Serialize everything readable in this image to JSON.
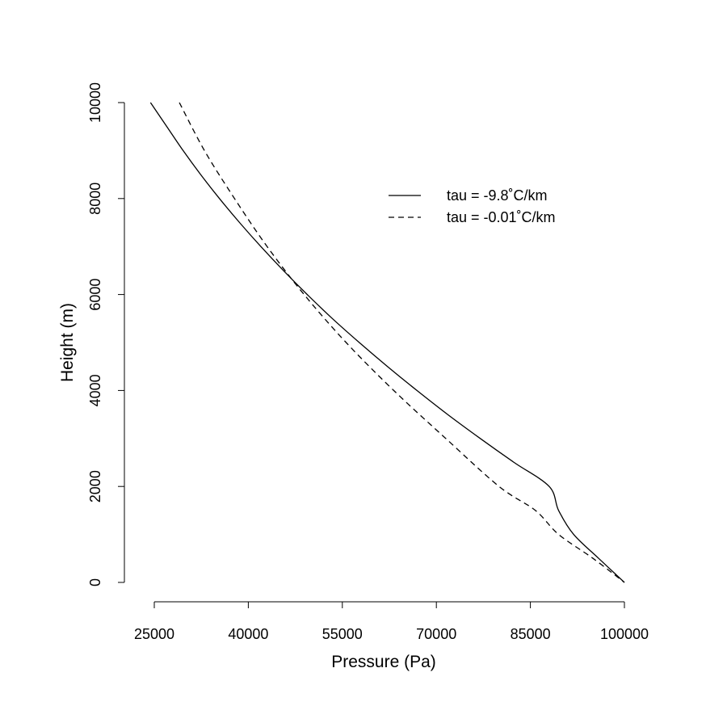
{
  "chart_data": {
    "type": "line",
    "title": "",
    "xlabel": "Pressure (Pa)",
    "ylabel": "Height (m)",
    "xlim": [
      25000,
      100000
    ],
    "ylim": [
      0,
      10000
    ],
    "x_ticks": [
      25000,
      40000,
      55000,
      70000,
      85000,
      100000
    ],
    "x_tick_labels": [
      "25000",
      "40000",
      "55000",
      "70000",
      "85000",
      "100000"
    ],
    "y_ticks": [
      0,
      2000,
      4000,
      6000,
      8000,
      10000
    ],
    "y_tick_labels": [
      "0",
      "2000",
      "4000",
      "6000",
      "8000",
      "10000"
    ],
    "grid": false,
    "legend_position": "top-right",
    "series": [
      {
        "name": "tau = -9.8˚C/km",
        "linestyle": "solid",
        "color": "#000000",
        "points": [
          [
            24400,
            10000
          ],
          [
            27000,
            9500
          ],
          [
            29600,
            9000
          ],
          [
            32400,
            8500
          ],
          [
            35400,
            8000
          ],
          [
            38600,
            7500
          ],
          [
            42000,
            7000
          ],
          [
            45600,
            6500
          ],
          [
            49400,
            6000
          ],
          [
            53400,
            5500
          ],
          [
            57700,
            5000
          ],
          [
            62200,
            4500
          ],
          [
            66900,
            4000
          ],
          [
            71800,
            3500
          ],
          [
            77000,
            3000
          ],
          [
            82400,
            2500
          ],
          [
            88000,
            2000
          ],
          [
            89500,
            1500
          ],
          [
            91900,
            1000
          ],
          [
            95900,
            500
          ],
          [
            100000,
            0
          ]
        ]
      },
      {
        "name": "tau = -0.01˚C/km",
        "linestyle": "dashed",
        "color": "#000000",
        "points": [
          [
            29000,
            10000
          ],
          [
            33000,
            9000
          ],
          [
            37800,
            8000
          ],
          [
            43000,
            7000
          ],
          [
            48900,
            6000
          ],
          [
            55600,
            5000
          ],
          [
            63200,
            4000
          ],
          [
            71500,
            3000
          ],
          [
            80000,
            2000
          ],
          [
            85800,
            1500
          ],
          [
            89500,
            1000
          ],
          [
            95000,
            500
          ],
          [
            100000,
            0
          ]
        ]
      }
    ]
  }
}
